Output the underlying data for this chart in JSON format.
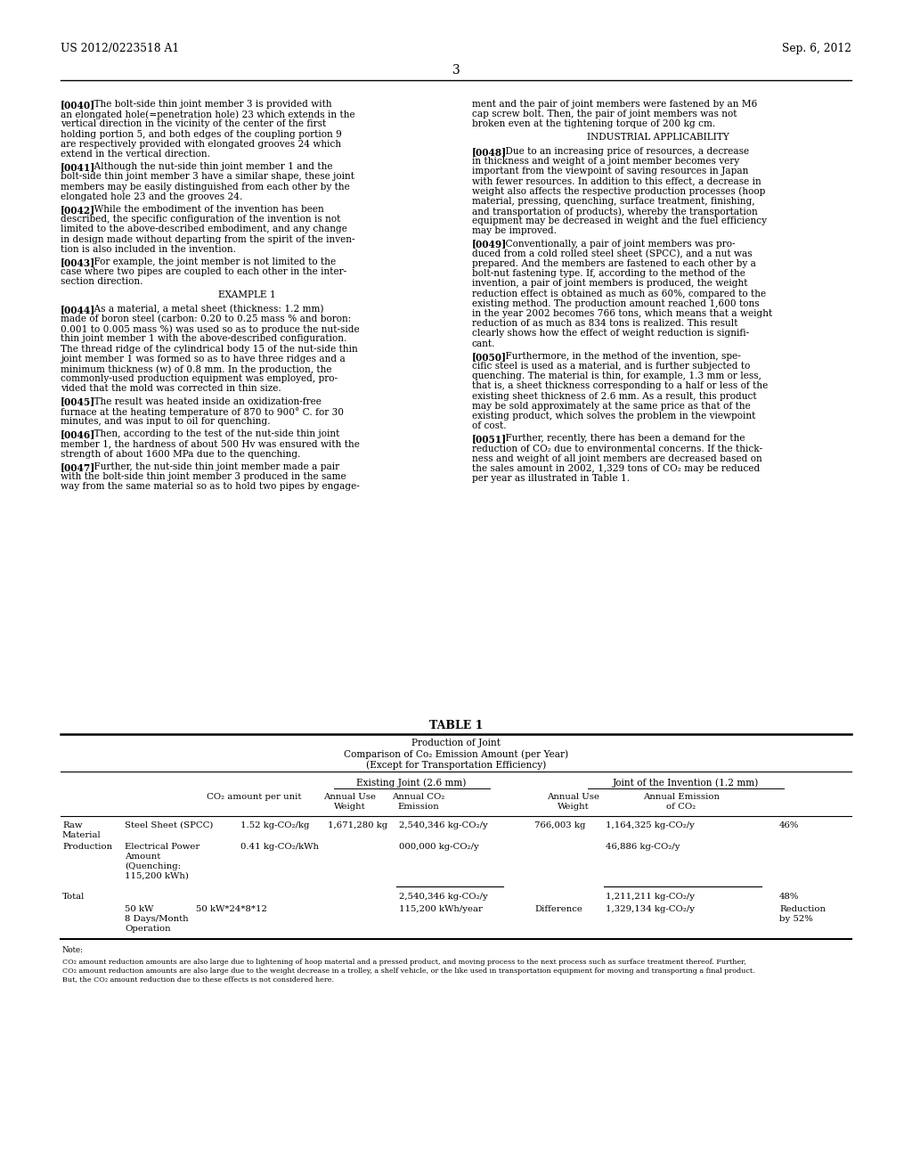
{
  "bg_color": "#ffffff",
  "header_left": "US 2012/0223518 A1",
  "header_right": "Sep. 6, 2012",
  "page_number": "3",
  "left_paragraphs": [
    {
      "tag": "[0040]",
      "bold_words": [
        "3",
        "23",
        "5",
        "9",
        "24"
      ],
      "text": "[0040] The bolt-side thin joint member 3 is provided with\nan elongated hole(=penetration hole) 23 which extends in the\nvertical direction in the vicinity of the center of the first\nholding portion 5, and both edges of the coupling portion 9\nare respectively provided with elongated grooves 24 which\nextend in the vertical direction."
    },
    {
      "tag": "[0041]",
      "bold_words": [],
      "text": "[0041] Although the nut-side thin joint member 1 and the\nbolt-side thin joint member 3 have a similar shape, these joint\nmembers may be easily distinguished from each other by the\nelongated hole 23 and the grooves 24."
    },
    {
      "tag": "[0042]",
      "bold_words": [],
      "text": "[0042] While the embodiment of the invention has been\ndescribed, the specific configuration of the invention is not\nlimited to the above-described embodiment, and any change\nin design made without departing from the spirit of the inven-\ntion is also included in the invention."
    },
    {
      "tag": "[0043]",
      "bold_words": [],
      "text": "[0043] For example, the joint member is not limited to the\ncase where two pipes are coupled to each other in the inter-\nsection direction."
    },
    {
      "tag": "EXAMPLE 1",
      "bold_words": [],
      "text": "EXAMPLE 1"
    },
    {
      "tag": "[0044]",
      "bold_words": [],
      "text": "[0044] As a material, a metal sheet (thickness: 1.2 mm)\nmade of boron steel (carbon: 0.20 to 0.25 mass % and boron:\n0.001 to 0.005 mass %) was used so as to produce the nut-side\nthin joint member 1 with the above-described configuration.\nThe thread ridge of the cylindrical body 15 of the nut-side thin\njoint member 1 was formed so as to have three ridges and a\nminimum thickness (w) of 0.8 mm. In the production, the\ncommonly-used production equipment was employed, pro-\nvided that the mold was corrected in thin size."
    },
    {
      "tag": "[0045]",
      "bold_words": [],
      "text": "[0045] The result was heated inside an oxidization-free\nfurnace at the heating temperature of 870 to 900° C. for 30\nminutes, and was input to oil for quenching."
    },
    {
      "tag": "[0046]",
      "bold_words": [],
      "text": "[0046] Then, according to the test of the nut-side thin joint\nmember 1, the hardness of about 500 Hv was ensured with the\nstrength of about 1600 MPa due to the quenching."
    },
    {
      "tag": "[0047]",
      "bold_words": [],
      "text": "[0047] Further, the nut-side thin joint member made a pair\nwith the bolt-side thin joint member 3 produced in the same\nway from the same material so as to hold two pipes by engage-"
    }
  ],
  "right_paragraphs": [
    {
      "tag": "",
      "bold_words": [],
      "text": "ment and the pair of joint members were fastened by an M6\ncap screw bolt. Then, the pair of joint members was not\nbroken even at the tightening torque of 200 kg cm."
    },
    {
      "tag": "INDUSTRIAL APPLICABILITY",
      "bold_words": [],
      "text": "INDUSTRIAL APPLICABILITY"
    },
    {
      "tag": "[0048]",
      "bold_words": [],
      "text": "[0048] Due to an increasing price of resources, a decrease\nin thickness and weight of a joint member becomes very\nimportant from the viewpoint of saving resources in Japan\nwith fewer resources. In addition to this effect, a decrease in\nweight also affects the respective production processes (hoop\nmaterial, pressing, quenching, surface treatment, finishing,\nand transportation of products), whereby the transportation\nequipment may be decreased in weight and the fuel efficiency\nmay be improved."
    },
    {
      "tag": "[0049]",
      "bold_words": [],
      "text": "[0049] Conventionally, a pair of joint members was pro-\nduced from a cold rolled steel sheet (SPCC), and a nut was\nprepared. And the members are fastened to each other by a\nbolt-nut fastening type. If, according to the method of the\ninvention, a pair of joint members is produced, the weight\nreduction effect is obtained as much as 60%, compared to the\nexisting method. The production amount reached 1,600 tons\nin the year 2002 becomes 766 tons, which means that a weight\nreduction of as much as 834 tons is realized. This result\nclearly shows how the effect of weight reduction is signifi-\ncant."
    },
    {
      "tag": "[0050]",
      "bold_words": [],
      "text": "[0050] Furthermore, in the method of the invention, spe-\ncific steel is used as a material, and is further subjected to\nquenching. The material is thin, for example, 1.3 mm or less,\nthat is, a sheet thickness corresponding to a half or less of the\nexisting sheet thickness of 2.6 mm. As a result, this product\nmay be sold approximately at the same price as that of the\nexisting product, which solves the problem in the viewpoint\nof cost."
    },
    {
      "tag": "[0051]",
      "bold_words": [],
      "text": "[0051] Further, recently, there has been a demand for the\nreduction of CO₂ due to environmental concerns. If the thick-\nness and weight of all joint members are decreased based on\nthe sales amount in 2002, 1,329 tons of CO₂ may be reduced\nper year as illustrated in Table 1."
    }
  ],
  "table_title": "TABLE 1",
  "table_subtitle1": "Production of Joint",
  "table_subtitle2": "Comparison of Co₂ Emission Amount (per Year)",
  "table_subtitle3": "(Except for Transportation Efficiency)",
  "note_title": "Note:",
  "note_lines": [
    "CO₂ amount reduction amounts are also large due to lightening of hoop material and a pressed product, and moving process to the next process such as surface treatment thereof. Further,",
    "CO₂ amount reduction amounts are also large due to the weight decrease in a trolley, a shelf vehicle, or the like used in transportation equipment for moving and transporting a final product.",
    "But, the CO₂ amount reduction due to these effects is not considered here."
  ]
}
